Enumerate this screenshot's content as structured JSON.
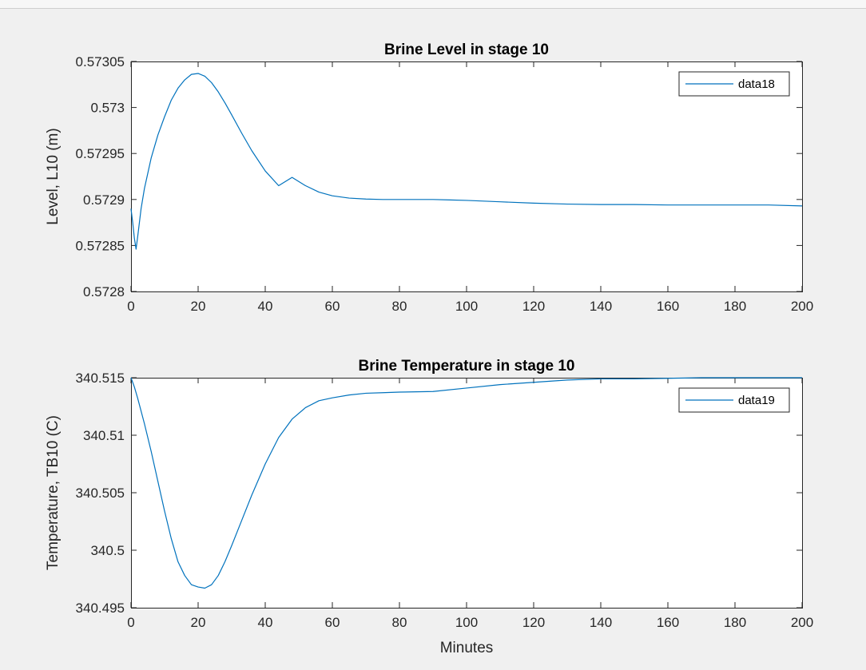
{
  "chart_data": [
    {
      "type": "line",
      "title": "Brine Level in stage 10",
      "xlabel": "",
      "ylabel": "Level,  L10  (m)",
      "xlim": [
        0,
        200
      ],
      "ylim": [
        0.5728,
        0.57305
      ],
      "xticks": [
        0,
        20,
        40,
        60,
        80,
        100,
        120,
        140,
        160,
        180,
        200
      ],
      "xtick_labels": [
        "0",
        "20",
        "40",
        "60",
        "80",
        "100",
        "120",
        "140",
        "160",
        "180",
        "200"
      ],
      "yticks": [
        0.5728,
        0.57285,
        0.5729,
        0.57295,
        0.573,
        0.57305
      ],
      "ytick_labels": [
        "0.5728",
        "0.57285",
        "0.5729",
        "0.57295",
        "0.573",
        "0.57305"
      ],
      "grid": false,
      "legend_position": "top-right",
      "color": "#0072BD",
      "series": [
        {
          "name": "data18",
          "x": [
            0,
            0.5,
            1,
            1.5,
            2,
            3,
            4,
            6,
            8,
            10,
            12,
            14,
            16,
            18,
            20,
            22,
            24,
            26,
            28,
            30,
            33,
            36,
            40,
            44,
            48,
            52,
            56,
            60,
            65,
            70,
            75,
            80,
            85,
            90,
            95,
            100,
            110,
            120,
            130,
            140,
            150,
            160,
            170,
            180,
            190,
            200
          ],
          "y": [
            0.57289,
            0.572875,
            0.572858,
            0.572846,
            0.57286,
            0.57289,
            0.572912,
            0.572945,
            0.57297,
            0.57299,
            0.573008,
            0.573021,
            0.57303,
            0.573036,
            0.573037,
            0.573034,
            0.573027,
            0.573017,
            0.573005,
            0.572992,
            0.572972,
            0.572953,
            0.572931,
            0.572915,
            0.572924,
            0.572915,
            0.572908,
            0.572904,
            0.5729015,
            0.5729005,
            0.5729,
            0.5729,
            0.5729,
            0.5729,
            0.5728995,
            0.572899,
            0.5728975,
            0.572896,
            0.572895,
            0.5728945,
            0.5728945,
            0.572894,
            0.572894,
            0.572894,
            0.572894,
            0.572893
          ]
        }
      ]
    },
    {
      "type": "line",
      "title": "Brine Temperature in stage 10",
      "xlabel": "Minutes",
      "ylabel": "Temperature,  TB10  (C)",
      "xlim": [
        0,
        200
      ],
      "ylim": [
        340.495,
        340.515
      ],
      "xticks": [
        0,
        20,
        40,
        60,
        80,
        100,
        120,
        140,
        160,
        180,
        200
      ],
      "xtick_labels": [
        "0",
        "20",
        "40",
        "60",
        "80",
        "100",
        "120",
        "140",
        "160",
        "180",
        "200"
      ],
      "yticks": [
        340.495,
        340.5,
        340.505,
        340.51,
        340.515
      ],
      "ytick_labels": [
        "340.495",
        "340.5",
        "340.505",
        "340.51",
        "340.515"
      ],
      "grid": false,
      "legend_position": "top-right",
      "color": "#0072BD",
      "series": [
        {
          "name": "data19",
          "x": [
            0,
            1,
            2,
            4,
            6,
            8,
            10,
            12,
            14,
            16,
            18,
            20,
            22,
            24,
            26,
            28,
            30,
            33,
            36,
            40,
            44,
            48,
            52,
            56,
            60,
            65,
            70,
            75,
            80,
            90,
            100,
            110,
            120,
            130,
            140,
            150,
            160,
            170,
            180,
            190,
            200
          ],
          "y": [
            340.515,
            340.5142,
            340.5132,
            340.511,
            340.5086,
            340.506,
            340.5034,
            340.501,
            340.499,
            340.4978,
            340.497,
            340.4968,
            340.4967,
            340.497,
            340.4978,
            340.499,
            340.5004,
            340.5026,
            340.5048,
            340.5075,
            340.5098,
            340.5114,
            340.5124,
            340.513,
            340.51325,
            340.5135,
            340.51365,
            340.5137,
            340.51375,
            340.5138,
            340.5141,
            340.5144,
            340.5146,
            340.5148,
            340.5149,
            340.5149,
            340.51495,
            340.515,
            340.515,
            340.515,
            340.515
          ]
        }
      ]
    }
  ]
}
